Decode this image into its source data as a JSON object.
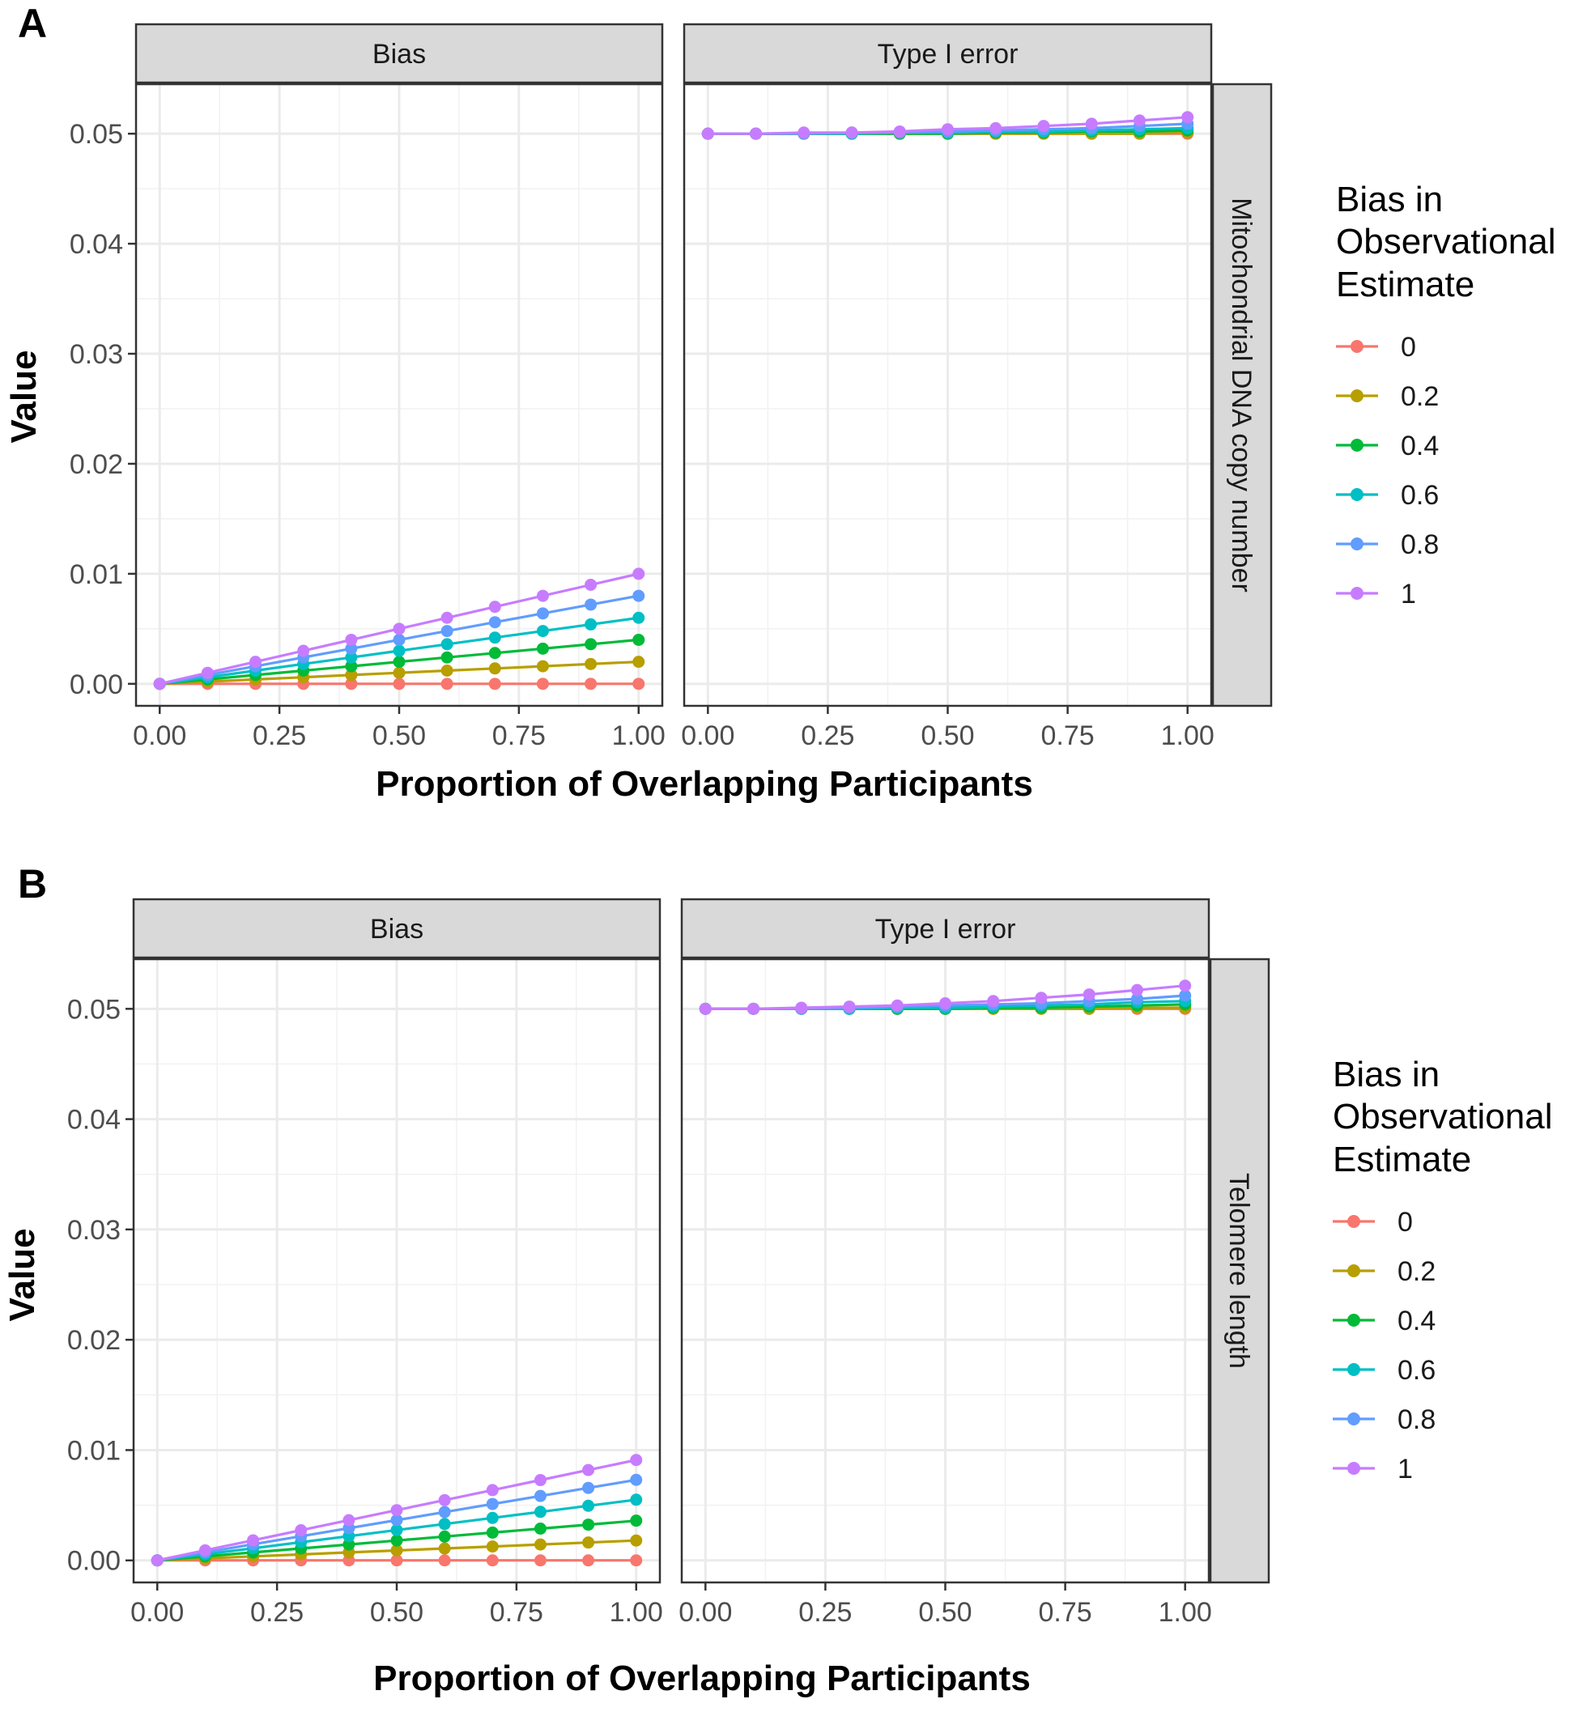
{
  "figure": {
    "legend_title_lines": [
      "Bias in",
      "Observational",
      "Estimate"
    ]
  },
  "chart_data": [
    {
      "type": "line",
      "panel_tag": "A",
      "row_strip": "Mitochondrial DNA copy number",
      "facets": [
        "Bias",
        "Type I error"
      ],
      "xlabel": "Proportion of Overlapping Participants",
      "ylabel": "Value",
      "xlim": [
        0,
        1
      ],
      "ylim": [
        -0.002,
        0.0545
      ],
      "x_ticks": [
        "0.00",
        "0.25",
        "0.50",
        "0.75",
        "1.00"
      ],
      "y_ticks": [
        "0.00",
        "0.01",
        "0.02",
        "0.03",
        "0.04",
        "0.05"
      ],
      "grid": true,
      "legend_position": "right",
      "x": [
        0,
        0.1,
        0.2,
        0.3,
        0.4,
        0.5,
        0.6,
        0.7,
        0.8,
        0.9,
        1.0
      ],
      "series": [
        {
          "name": "0",
          "color": "#F8766D",
          "Bias": [
            0,
            0,
            0,
            0,
            0,
            0,
            0,
            0,
            0,
            0,
            0
          ],
          "Type I error": [
            0.05,
            0.05,
            0.05,
            0.05,
            0.05,
            0.05,
            0.05,
            0.05,
            0.05,
            0.05,
            0.05
          ]
        },
        {
          "name": "0.2",
          "color": "#B79F00",
          "Bias": [
            0,
            0.0002,
            0.0004,
            0.0006,
            0.0008,
            0.001,
            0.0012,
            0.0014,
            0.0016,
            0.0018,
            0.002
          ],
          "Type I error": [
            0.05,
            0.05,
            0.05,
            0.05,
            0.05,
            0.05,
            0.05,
            0.05,
            0.05,
            0.05,
            0.0501
          ]
        },
        {
          "name": "0.4",
          "color": "#00BA38",
          "Bias": [
            0,
            0.0004,
            0.0008,
            0.0012,
            0.0016,
            0.002,
            0.0024,
            0.0028,
            0.0032,
            0.0036,
            0.004
          ],
          "Type I error": [
            0.05,
            0.05,
            0.05,
            0.05,
            0.05,
            0.05,
            0.0501,
            0.0501,
            0.0502,
            0.0502,
            0.0503
          ]
        },
        {
          "name": "0.6",
          "color": "#00BFC4",
          "Bias": [
            0,
            0.0006,
            0.0012,
            0.0018,
            0.0024,
            0.003,
            0.0036,
            0.0042,
            0.0048,
            0.0054,
            0.006
          ],
          "Type I error": [
            0.05,
            0.05,
            0.05,
            0.05,
            0.0501,
            0.0501,
            0.0502,
            0.0502,
            0.0503,
            0.0504,
            0.0505
          ]
        },
        {
          "name": "0.8",
          "color": "#619CFF",
          "Bias": [
            0,
            0.0008,
            0.0016,
            0.0024,
            0.0032,
            0.004,
            0.0048,
            0.0056,
            0.0064,
            0.0072,
            0.008
          ],
          "Type I error": [
            0.05,
            0.05,
            0.05,
            0.0501,
            0.0501,
            0.0502,
            0.0503,
            0.0504,
            0.0505,
            0.0507,
            0.0509
          ]
        },
        {
          "name": "1",
          "color": "#C77CFF",
          "Bias": [
            0,
            0.001,
            0.002,
            0.003,
            0.004,
            0.005,
            0.006,
            0.007,
            0.008,
            0.009,
            0.01
          ],
          "Type I error": [
            0.05,
            0.05,
            0.0501,
            0.0501,
            0.0502,
            0.0504,
            0.0505,
            0.0507,
            0.0509,
            0.0512,
            0.0515
          ]
        }
      ]
    },
    {
      "type": "line",
      "panel_tag": "B",
      "row_strip": "Telomere length",
      "facets": [
        "Bias",
        "Type I error"
      ],
      "xlabel": "Proportion of Overlapping Participants",
      "ylabel": "Value",
      "xlim": [
        0,
        1
      ],
      "ylim": [
        -0.002,
        0.0545
      ],
      "x_ticks": [
        "0.00",
        "0.25",
        "0.50",
        "0.75",
        "1.00"
      ],
      "y_ticks": [
        "0.00",
        "0.01",
        "0.02",
        "0.03",
        "0.04",
        "0.05"
      ],
      "grid": true,
      "legend_position": "right",
      "x": [
        0,
        0.1,
        0.2,
        0.3,
        0.4,
        0.5,
        0.6,
        0.7,
        0.8,
        0.9,
        1.0
      ],
      "series": [
        {
          "name": "0",
          "color": "#F8766D",
          "Bias": [
            0,
            0,
            0,
            0,
            0,
            0,
            0,
            0,
            0,
            0,
            0
          ],
          "Type I error": [
            0.05,
            0.05,
            0.05,
            0.05,
            0.05,
            0.05,
            0.05,
            0.05,
            0.05,
            0.05,
            0.05
          ]
        },
        {
          "name": "0.2",
          "color": "#B79F00",
          "Bias": [
            0,
            0.00018,
            0.00036,
            0.00054,
            0.00072,
            0.0009,
            0.00108,
            0.00126,
            0.00144,
            0.00162,
            0.0018
          ],
          "Type I error": [
            0.05,
            0.05,
            0.05,
            0.05,
            0.05,
            0.05,
            0.05,
            0.05,
            0.05,
            0.0501,
            0.0501
          ]
        },
        {
          "name": "0.4",
          "color": "#00BA38",
          "Bias": [
            0,
            0.00036,
            0.00072,
            0.00108,
            0.00144,
            0.0018,
            0.00216,
            0.00252,
            0.00288,
            0.00324,
            0.0036
          ],
          "Type I error": [
            0.05,
            0.05,
            0.05,
            0.05,
            0.05,
            0.05,
            0.0501,
            0.0501,
            0.0502,
            0.0503,
            0.0504
          ]
        },
        {
          "name": "0.6",
          "color": "#00BFC4",
          "Bias": [
            0,
            0.00055,
            0.0011,
            0.00165,
            0.0022,
            0.00275,
            0.0033,
            0.00385,
            0.0044,
            0.00495,
            0.0055
          ],
          "Type I error": [
            0.05,
            0.05,
            0.05,
            0.05,
            0.0501,
            0.0501,
            0.0502,
            0.0503,
            0.0504,
            0.0506,
            0.0507
          ]
        },
        {
          "name": "0.8",
          "color": "#619CFF",
          "Bias": [
            0,
            0.00073,
            0.00146,
            0.00219,
            0.00292,
            0.00365,
            0.00438,
            0.00511,
            0.00584,
            0.00657,
            0.0073
          ],
          "Type I error": [
            0.05,
            0.05,
            0.05,
            0.0501,
            0.0502,
            0.0503,
            0.0504,
            0.0505,
            0.0507,
            0.0509,
            0.0512
          ]
        },
        {
          "name": "1",
          "color": "#C77CFF",
          "Bias": [
            0,
            0.00091,
            0.00182,
            0.00273,
            0.00364,
            0.00455,
            0.00546,
            0.00637,
            0.00728,
            0.00819,
            0.0091
          ],
          "Type I error": [
            0.05,
            0.05,
            0.0501,
            0.0502,
            0.0503,
            0.0505,
            0.0507,
            0.051,
            0.0513,
            0.0517,
            0.0521
          ]
        }
      ]
    }
  ]
}
